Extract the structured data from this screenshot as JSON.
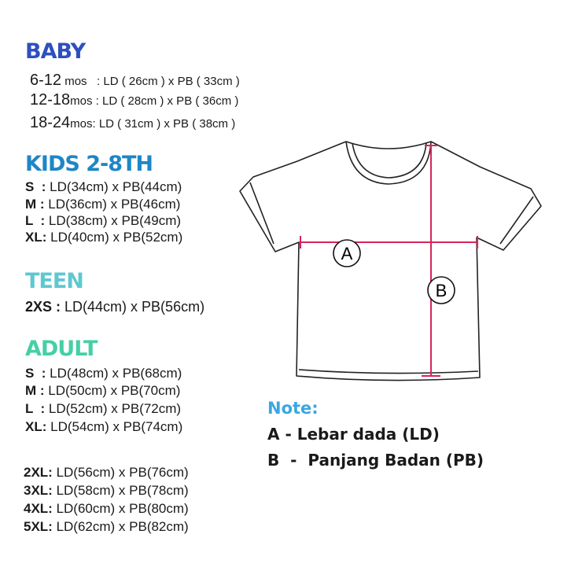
{
  "colors": {
    "baby": "#2e4fbf",
    "kids": "#1e86c6",
    "teen": "#5ec8d1",
    "adult": "#46cfa6",
    "note": "#3aa7e0",
    "measure": "#d8245a"
  },
  "baby": {
    "title": "BABY",
    "rows": [
      {
        "age": "6-12",
        "unit": "mos",
        "value": " : LD ( 26cm ) x PB ( 33cm )"
      },
      {
        "age": "12-18",
        "unit": "mos",
        "value": " : LD ( 28cm ) x PB ( 36cm )"
      },
      {
        "age": "18-24",
        "unit": "mos:",
        "value": " LD ( 31cm ) x PB ( 38cm )"
      }
    ]
  },
  "kids": {
    "title": "KIDS 2-8TH",
    "rows": [
      {
        "size": "S  :",
        "value": " LD(34cm) x PB(44cm)"
      },
      {
        "size": "M :",
        "value": " LD(36cm) x PB(46cm)"
      },
      {
        "size": "L  :",
        "value": " LD(38cm) x PB(49cm)"
      },
      {
        "size": "XL:",
        "value": " LD(40cm) x PB(52cm)"
      }
    ]
  },
  "teen": {
    "title": "TEEN",
    "rows": [
      {
        "size": "2XS :",
        "value": " LD(44cm) x PB(56cm)"
      }
    ]
  },
  "adult": {
    "title": "ADULT",
    "rows": [
      {
        "size": "S  :",
        "value": " LD(48cm) x PB(68cm)"
      },
      {
        "size": "M :",
        "value": " LD(50cm) x PB(70cm)"
      },
      {
        "size": "L  :",
        "value": " LD(52cm) x PB(72cm)"
      },
      {
        "size": "XL:",
        "value": " LD(54cm) x PB(74cm)"
      },
      {
        "size": "2XL:",
        "value": " LD(56cm) x PB(76cm)"
      },
      {
        "size": "3XL:",
        "value": " LD(58cm) x PB(78cm)"
      },
      {
        "size": "4XL:",
        "value": " LD(60cm) x PB(80cm)"
      },
      {
        "size": "5XL:",
        "value": " LD(62cm) x PB(82cm)"
      }
    ]
  },
  "diagram": {
    "label_a": "A",
    "label_b": "B"
  },
  "note": {
    "title": "Note:",
    "a": "A - Lebar dada (LD)",
    "b": "B  -  Panjang Badan (PB)"
  }
}
